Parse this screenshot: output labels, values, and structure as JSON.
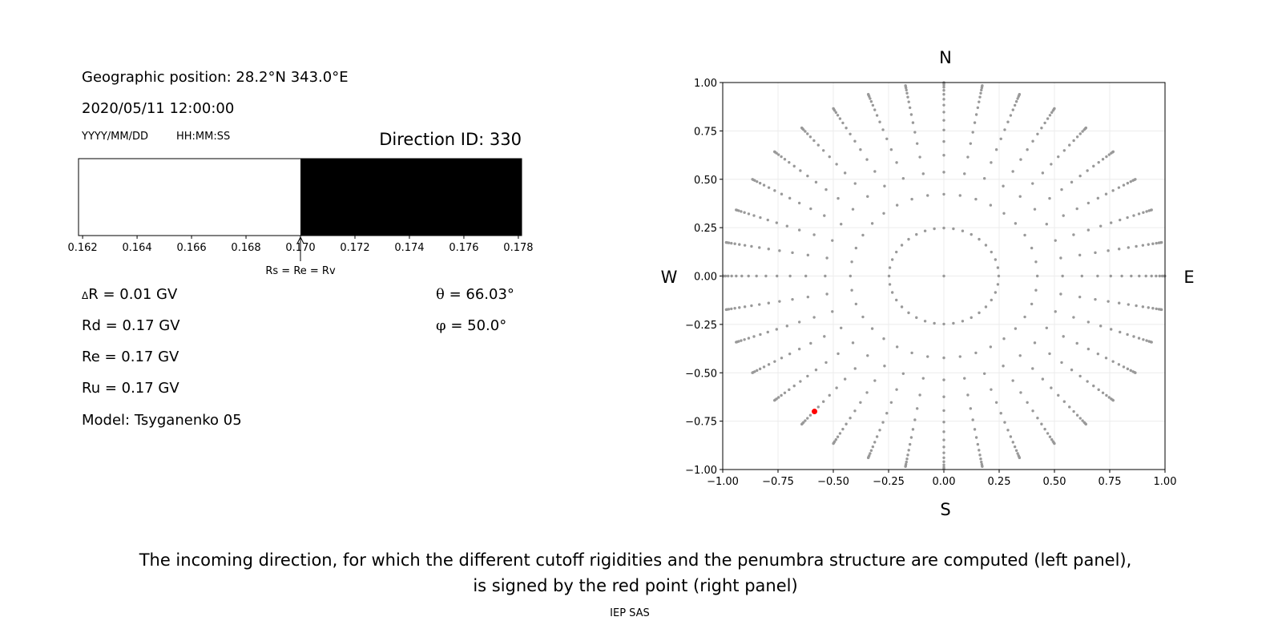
{
  "left_panel": {
    "geo_position": "Geographic position: 28.2°N 343.0°E",
    "datetime": "2020/05/11 12:00:00",
    "date_format": "YYYY/MM/DD",
    "time_format": "HH:MM:SS",
    "direction_id": "Direction ID: 330",
    "delta_r_symbol": "Δ",
    "delta_r": "R = 0.01 GV",
    "rd": "Rd = 0.17 GV",
    "re": "Re = 0.17 GV",
    "ru": "Ru = 0.17 GV",
    "model": "Model: Tsyganenko 05",
    "theta_symbol": "θ",
    "theta": " = 66.03°",
    "phi_symbol": "φ",
    "phi": " = 50.0°"
  },
  "chart_data": [
    {
      "type": "bar",
      "description_role": "penumbra structure",
      "xlim": [
        0.16185,
        0.17812
      ],
      "xticks": [
        "0.162",
        "0.164",
        "0.166",
        "0.168",
        "0.170",
        "0.172",
        "0.174",
        "0.176",
        "0.178"
      ],
      "xtick_values": [
        0.162,
        0.164,
        0.166,
        0.168,
        0.17,
        0.172,
        0.174,
        0.176,
        0.178
      ],
      "segments": [
        {
          "from": 0.16185,
          "to": 0.17,
          "color": "#ffffff",
          "state": "allowed"
        },
        {
          "from": 0.17,
          "to": 0.17812,
          "color": "#000000",
          "state": "forbidden"
        }
      ],
      "annotation": {
        "text": "Rs = Re = Rv",
        "x": 0.17
      }
    },
    {
      "type": "scatter",
      "xlim": [
        -1.0,
        1.0
      ],
      "ylim": [
        -1.0,
        1.0
      ],
      "grid": true,
      "xticks": [
        "−1.00",
        "−0.75",
        "−0.50",
        "−0.25",
        "0.00",
        "0.25",
        "0.50",
        "0.75",
        "1.00"
      ],
      "yticks": [
        "1.00",
        "0.75",
        "0.50",
        "0.25",
        "0.00",
        "−0.25",
        "−0.50",
        "−0.75",
        "−1.00"
      ],
      "tick_values": [
        -1,
        -0.75,
        -0.5,
        -0.25,
        0,
        0.25,
        0.5,
        0.75,
        1
      ],
      "compass": {
        "north": "N",
        "south": "S",
        "west": "W",
        "east": "E"
      },
      "directions": {
        "azimuths_deg": [
          0,
          10,
          20,
          30,
          40,
          50,
          60,
          70,
          80,
          90,
          100,
          110,
          120,
          130,
          140,
          150,
          160,
          170,
          180,
          190,
          200,
          210,
          220,
          230,
          240,
          250,
          260,
          270,
          280,
          290,
          300,
          310,
          320,
          330,
          340,
          350
        ],
        "cos_zenith": [
          0.96875,
          0.90625,
          0.84375,
          0.78125,
          0.71875,
          0.65625,
          0.59375,
          0.53125,
          0.46875,
          0.40625,
          0.34375,
          0.28125,
          0.21875,
          0.15625,
          0.09375,
          0.03125
        ],
        "center_point": [
          0,
          0
        ],
        "color": "#999999"
      },
      "selected_point": {
        "x": -0.585,
        "y": -0.7,
        "color": "#ff0000"
      }
    }
  ],
  "caption": {
    "line1": "The incoming direction, for which the different cutoff rigidities and the penumbra structure are computed (left panel),",
    "line2": "is signed by the red point (right panel)"
  },
  "footer": "IEP SAS"
}
